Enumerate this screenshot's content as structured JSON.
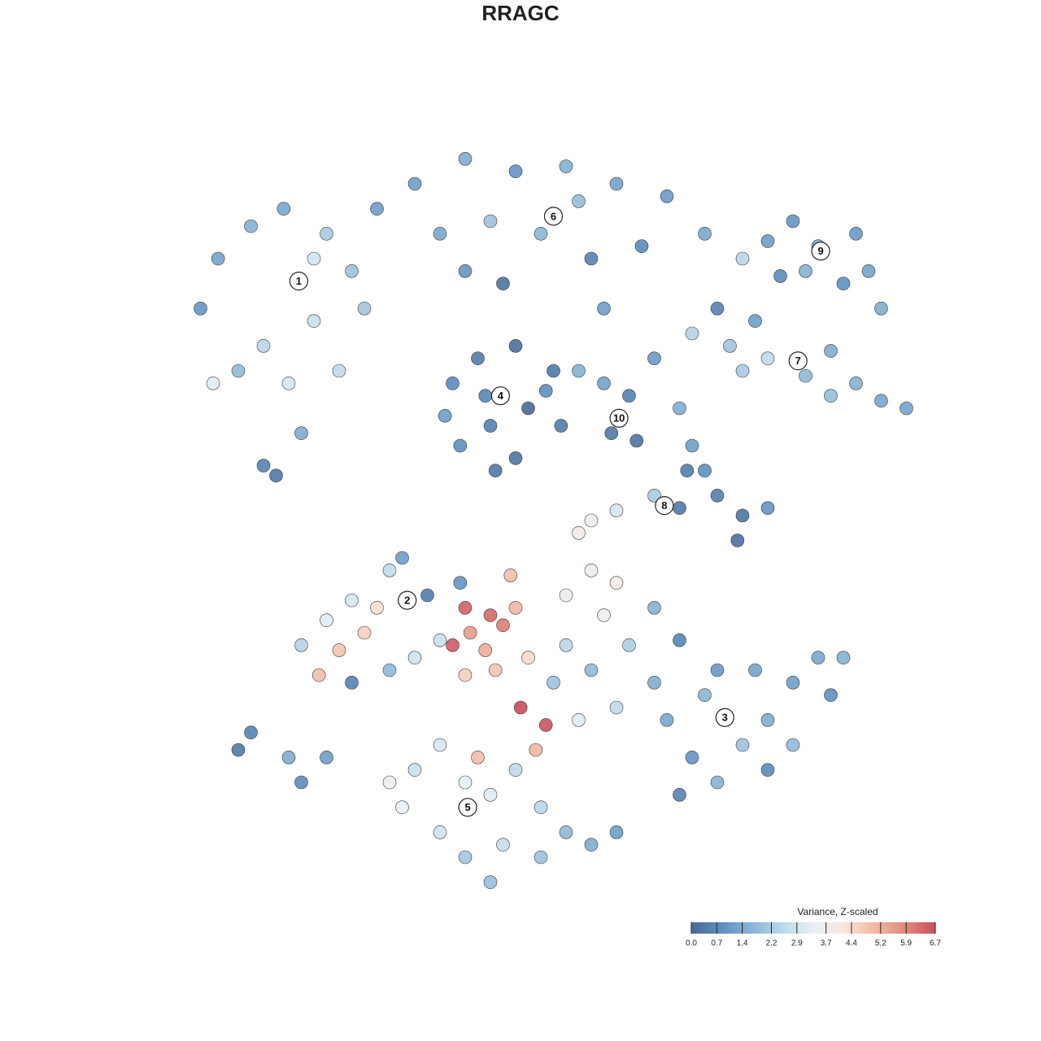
{
  "chart_data": {
    "type": "scatter",
    "title": "RRAGC",
    "x": [
      -13.5,
      -12.8,
      -11.5,
      -10.2,
      -8.5,
      -7.5,
      -9,
      -11,
      -10,
      -8,
      -12,
      -9.5,
      -11,
      -10.5,
      -7,
      -13,
      -6.5,
      -9,
      -5,
      -3,
      -1,
      1,
      3,
      5,
      6.5,
      4,
      2,
      0,
      -2,
      -4,
      -1.5,
      2.5,
      -3,
      1.5,
      9,
      10,
      11,
      12.5,
      13,
      12,
      10.5,
      9.5,
      13.5,
      8,
      6,
      7.5,
      8.5,
      9,
      10.5,
      11.5,
      12.5,
      13.5,
      14.5,
      11.5,
      8,
      7,
      -3.5,
      -2.5,
      -1,
      0.5,
      -0.5,
      -2,
      -3.2,
      -1,
      0.8,
      -2.2,
      0.2,
      -3.8,
      -1.8,
      2.5,
      3.5,
      2.8,
      3.8,
      1.5,
      4.5,
      5.5,
      6,
      5.8,
      4.5,
      5.5,
      7,
      8,
      9,
      7.8,
      6.5,
      3,
      2,
      1.5,
      -9.5,
      -8.5,
      -8,
      -7.5,
      -7,
      -6.5,
      -6,
      -5.5,
      -4.5,
      -6,
      -7.5,
      -8.8,
      -4,
      -5,
      -3,
      -2,
      -1.5,
      -2.8,
      -3.5,
      -2.2,
      -1,
      -1.8,
      -3,
      -0.5,
      -1.2,
      -3.2,
      -0.8,
      0.2,
      -2.5,
      -0.2,
      1,
      2,
      3,
      2.5,
      1,
      0.5,
      2,
      3.5,
      4.5,
      3,
      1.5,
      4.5,
      5.5,
      5,
      6,
      7,
      8,
      9,
      10,
      11,
      11.5,
      10,
      8.5,
      6.5,
      7,
      9,
      12,
      5.5,
      -5,
      -4,
      -3,
      -2,
      -1,
      0,
      1,
      2,
      0,
      -1.5,
      -3,
      -4,
      -5.5,
      -2,
      3,
      -6,
      -11.5,
      -12,
      -10,
      -9.5,
      -8.5
    ],
    "y": [
      8.5,
      10.5,
      11.8,
      12.5,
      11.5,
      10,
      8,
      7,
      5.5,
      6,
      6,
      3.5,
      2.2,
      1.8,
      8.5,
      5.5,
      12.5,
      10.5,
      13.5,
      14.5,
      14,
      14.2,
      13.5,
      13,
      11.5,
      11,
      10.5,
      11.5,
      12,
      11.5,
      9.5,
      8.5,
      10,
      12.8,
      11.2,
      12,
      11,
      11.5,
      10,
      9.5,
      10,
      9.8,
      8.5,
      10.5,
      7.5,
      7,
      8,
      6.5,
      5.8,
      5,
      5.5,
      4.8,
      4.5,
      6.8,
      6,
      8.5,
      5.5,
      6.5,
      7,
      6,
      4.5,
      3.8,
      3,
      2.5,
      3.8,
      5,
      5.2,
      4.2,
      2,
      5.5,
      5,
      3.5,
      3.2,
      6,
      6.5,
      4.5,
      3,
      2,
      1,
      0.5,
      1,
      0.2,
      0.5,
      -0.8,
      2,
      0.4,
      0,
      -0.5,
      -5,
      -4,
      -5.2,
      -3.2,
      -4.5,
      -3.5,
      -2,
      -1.5,
      -3,
      -6,
      -6.5,
      -6.2,
      -4.8,
      -5.5,
      -3.5,
      -3.8,
      -4.2,
      -4.5,
      -5,
      -5.2,
      -3.5,
      -6,
      -6.2,
      -5.5,
      -2.2,
      -2.5,
      -7.5,
      -8.2,
      -9.5,
      -9.2,
      -3,
      -2,
      -2.5,
      -3.8,
      -5,
      -6.5,
      -6,
      -5,
      -6.5,
      -7.5,
      -8,
      -3.5,
      -4.8,
      -8,
      -9.5,
      -10.5,
      -9,
      -8,
      -6.5,
      -5.5,
      -7,
      -9,
      -6,
      -7,
      -6,
      -10,
      -5.5,
      -11,
      -10,
      -9,
      -10.5,
      -11,
      -10,
      -11.5,
      -12.5,
      -13,
      -13.5,
      -13,
      -13.5,
      -12.5,
      -11.5,
      -14.5,
      -12.5,
      -10.5,
      -8.5,
      -9.2,
      -9.5,
      -10.5,
      -9.5
    ],
    "values": [
      1.0,
      1.3,
      1.6,
      1.4,
      2.2,
      2.0,
      2.8,
      2.5,
      3.0,
      2.6,
      1.8,
      1.5,
      0.6,
      0.4,
      2.1,
      3.2,
      1.2,
      2.9,
      1.2,
      1.5,
      1.0,
      1.6,
      1.3,
      1.1,
      1.4,
      0.8,
      0.6,
      1.7,
      2.0,
      1.4,
      0.3,
      1.2,
      1.0,
      1.9,
      1.2,
      1.0,
      1.4,
      1.1,
      1.3,
      0.9,
      1.6,
      0.8,
      1.5,
      2.5,
      2.4,
      2.1,
      1.2,
      2.6,
      1.8,
      1.9,
      1.6,
      1.4,
      1.3,
      1.5,
      2.2,
      0.6,
      0.8,
      0.5,
      0.2,
      0.4,
      0.1,
      0.6,
      0.9,
      0.3,
      0.5,
      0.7,
      0.9,
      1.2,
      0.4,
      1.3,
      0.6,
      0.4,
      0.3,
      1.6,
      1.1,
      1.5,
      1.2,
      0.5,
      2.2,
      0.4,
      0.5,
      0.3,
      1.0,
      0.2,
      0.9,
      3.0,
      3.5,
      3.8,
      2.4,
      3.2,
      4.8,
      3.0,
      4.6,
      4.3,
      2.6,
      1.2,
      0.5,
      1.8,
      0.6,
      4.9,
      2.8,
      2.9,
      6.4,
      6.3,
      6.0,
      5.5,
      6.5,
      5.2,
      5.0,
      4.8,
      4.6,
      4.4,
      4.9,
      1.0,
      6.7,
      6.6,
      4.9,
      5.0,
      3.7,
      3.5,
      3.9,
      3.6,
      2.5,
      2.0,
      1.8,
      2.3,
      1.5,
      2.6,
      3.2,
      1.6,
      0.7,
      1.4,
      1.0,
      1.6,
      2.0,
      1.5,
      1.2,
      1.4,
      0.9,
      1.8,
      1.3,
      1.7,
      1.1,
      0.8,
      1.6,
      0.6,
      2.8,
      3.0,
      3.3,
      3.2,
      2.6,
      2.5,
      1.8,
      1.5,
      2.0,
      2.7,
      2.1,
      2.9,
      3.4,
      1.9,
      1.2,
      3.6,
      0.6,
      0.4,
      1.5,
      0.8,
      1.2
    ],
    "xlim": [
      -15,
      15
    ],
    "ylim": [
      -15,
      15
    ],
    "annotations": [
      {
        "text": "1",
        "x": -9.6,
        "y": 9.6
      },
      {
        "text": "6",
        "x": 0.5,
        "y": 12.2
      },
      {
        "text": "9",
        "x": 11.1,
        "y": 10.8
      },
      {
        "text": "7",
        "x": 10.2,
        "y": 6.4
      },
      {
        "text": "4",
        "x": -1.6,
        "y": 5.0
      },
      {
        "text": "10",
        "x": 3.1,
        "y": 4.1
      },
      {
        "text": "8",
        "x": 4.9,
        "y": 0.6
      },
      {
        "text": "2",
        "x": -5.3,
        "y": -3.2
      },
      {
        "text": "3",
        "x": 7.3,
        "y": -7.9
      },
      {
        "text": "5",
        "x": -2.9,
        "y": -11.5
      }
    ],
    "colorbar": {
      "title": "Variance, Z-scaled",
      "lim": [
        0,
        6.7
      ],
      "colors": [
        "#4a6a94",
        "#5e8fc0",
        "#8ab6d6",
        "#bcd8e8",
        "#e8f1f6",
        "#f9e6de",
        "#f1b8a2",
        "#e2897e",
        "#c9505e"
      ],
      "ticks": [
        {
          "value": 0,
          "label": "0.0"
        },
        0.7,
        1.4,
        2.2,
        2.9,
        3.7,
        4.4,
        5.2,
        5.9,
        6.7
      ]
    }
  }
}
